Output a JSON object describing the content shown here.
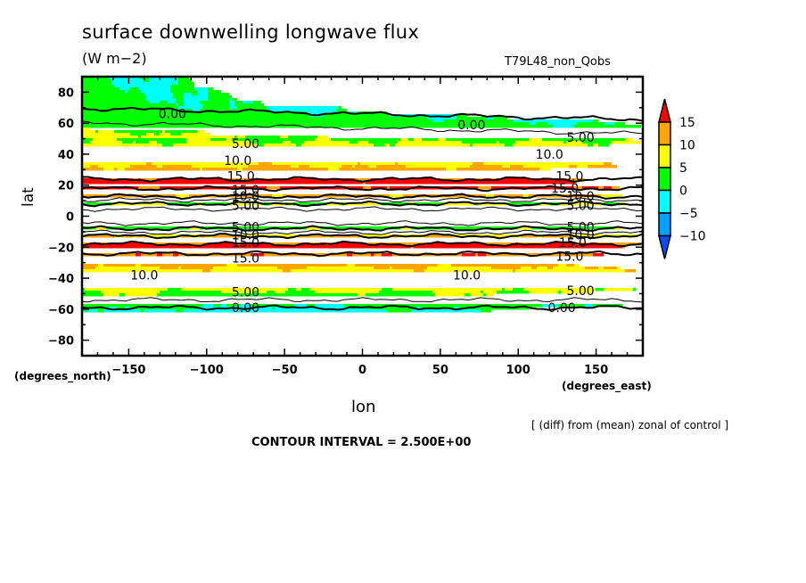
{
  "chart_data": {
    "type": "heatmap",
    "subtype": "filled-contour-map",
    "title": "surface downwelling longwave flux",
    "units": "(W m−2)",
    "run_label": "T79L48_non_Qobs",
    "xlabel": "lon",
    "ylabel": "lat",
    "x_unit_label": "(degrees_east)",
    "y_unit_label": "(degrees_north)",
    "xlim": [
      -180,
      180
    ],
    "ylim": [
      -90,
      90
    ],
    "x_ticks": [
      -150,
      -100,
      -50,
      0,
      50,
      100,
      150
    ],
    "x_tick_labels": [
      "−150",
      "−100",
      "−50",
      "0",
      "50",
      "100",
      "150"
    ],
    "y_ticks": [
      80,
      60,
      40,
      20,
      0,
      -20,
      -40,
      -60,
      -80
    ],
    "y_tick_labels": [
      "80",
      "60",
      "40",
      "20",
      "0",
      "−20",
      "−40",
      "−60",
      "−80"
    ],
    "contour_interval": 2.5,
    "contour_interval_text": "CONTOUR INTERVAL = 2.500E+00",
    "note": "[ (diff) from (mean) zonal of control ]",
    "colorbar": {
      "levels": [
        -10,
        -5,
        0,
        5,
        10,
        15
      ],
      "labels": [
        "15",
        "10",
        "5",
        "0",
        "−5",
        "−10"
      ],
      "colors": [
        "#0050ff",
        "#00a0ff",
        "#00ffff",
        "#00ff00",
        "#ffff00",
        "#ffa500",
        "#ff0000"
      ]
    },
    "zonal_profile": {
      "description_lat_deg": [
        90,
        70,
        62,
        55,
        48,
        40,
        32,
        26,
        23,
        19,
        15,
        11,
        7,
        3,
        0,
        -3,
        -7,
        -11,
        -15,
        -19,
        -23,
        -27,
        -33,
        -41,
        -49,
        -57,
        -63,
        -90
      ],
      "value": [
        -2,
        -1,
        1,
        3,
        5,
        7.5,
        10,
        12.5,
        16,
        16,
        12.5,
        8,
        4,
        1.5,
        1.5,
        1.5,
        4,
        8,
        12.5,
        16,
        16,
        12.5,
        10,
        7.5,
        5,
        1,
        -2,
        -2
      ]
    },
    "contour_labels": [
      {
        "text": "0.00",
        "lon": -122,
        "lat": 66
      },
      {
        "text": "0.00",
        "lon": 70,
        "lat": 59
      },
      {
        "text": "5.00",
        "lon": -75,
        "lat": 47
      },
      {
        "text": "5.00",
        "lon": 140,
        "lat": 51
      },
      {
        "text": "10.0",
        "lon": -80,
        "lat": 36
      },
      {
        "text": "10.0",
        "lon": 120,
        "lat": 40
      },
      {
        "text": "15.0",
        "lon": -78,
        "lat": 26
      },
      {
        "text": "15.0",
        "lon": 133,
        "lat": 26
      },
      {
        "text": "15.0",
        "lon": -75,
        "lat": 17
      },
      {
        "text": "15.0",
        "lon": 130,
        "lat": 18
      },
      {
        "text": "10.0",
        "lon": -75,
        "lat": 13
      },
      {
        "text": "10.0",
        "lon": 140,
        "lat": 13
      },
      {
        "text": "5.00",
        "lon": -75,
        "lat": 7
      },
      {
        "text": "5.00",
        "lon": 140,
        "lat": 7
      },
      {
        "text": "5.00",
        "lon": -75,
        "lat": -7
      },
      {
        "text": "5.00",
        "lon": 140,
        "lat": -7
      },
      {
        "text": "10.0",
        "lon": -75,
        "lat": -12
      },
      {
        "text": "10.0",
        "lon": 140,
        "lat": -12
      },
      {
        "text": "15.0",
        "lon": -75,
        "lat": -17
      },
      {
        "text": "15.0",
        "lon": 135,
        "lat": -17
      },
      {
        "text": "15.0",
        "lon": -75,
        "lat": -27
      },
      {
        "text": "15.0",
        "lon": 133,
        "lat": -26
      },
      {
        "text": "10.0",
        "lon": -140,
        "lat": -38
      },
      {
        "text": "10.0",
        "lon": 67,
        "lat": -38
      },
      {
        "text": "5.00",
        "lon": -75,
        "lat": -49
      },
      {
        "text": "5.00",
        "lon": 140,
        "lat": -48
      },
      {
        "text": "0.00",
        "lon": -75,
        "lat": -59
      },
      {
        "text": "0.00",
        "lon": 128,
        "lat": -59
      }
    ]
  }
}
